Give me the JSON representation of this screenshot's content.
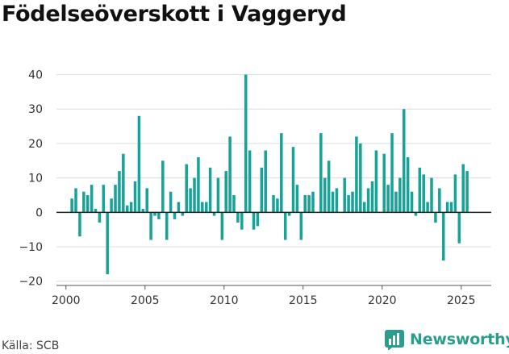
{
  "header": {
    "title": "Födelseöverskott i Vaggeryd"
  },
  "footer": {
    "source": "Källa: SCB",
    "brand": "Newsworthy"
  },
  "colors": {
    "bar": "#17a398",
    "grid": "#dddddd",
    "zero_line": "#222222",
    "brand": "#2a9d8f"
  },
  "chart_data": {
    "type": "bar",
    "title": "Födelseöverskott i Vaggeryd",
    "xlabel": "",
    "ylabel": "",
    "xlim": [
      1999.4,
      2026.9
    ],
    "ylim": [
      -21,
      42
    ],
    "x_ticks": [
      2000,
      2005,
      2010,
      2015,
      2020,
      2025
    ],
    "y_ticks": [
      -20,
      -10,
      0,
      10,
      20,
      30,
      40
    ],
    "grid": "horizontal",
    "bar_width": 0.18,
    "x": [
      2000.375,
      2000.625,
      2000.875,
      2001.125,
      2001.375,
      2001.625,
      2001.875,
      2002.125,
      2002.375,
      2002.625,
      2002.875,
      2003.125,
      2003.375,
      2003.625,
      2003.875,
      2004.125,
      2004.375,
      2004.625,
      2004.875,
      2005.125,
      2005.375,
      2005.625,
      2005.875,
      2006.125,
      2006.375,
      2006.625,
      2006.875,
      2007.125,
      2007.375,
      2007.625,
      2007.875,
      2008.125,
      2008.375,
      2008.625,
      2008.875,
      2009.125,
      2009.375,
      2009.625,
      2009.875,
      2010.125,
      2010.375,
      2010.625,
      2010.875,
      2011.125,
      2011.375,
      2011.625,
      2011.875,
      2012.125,
      2012.375,
      2012.625,
      2012.875,
      2013.125,
      2013.375,
      2013.625,
      2013.875,
      2014.125,
      2014.375,
      2014.625,
      2014.875,
      2015.125,
      2015.375,
      2015.625,
      2015.875,
      2016.125,
      2016.375,
      2016.625,
      2016.875,
      2017.125,
      2017.375,
      2017.625,
      2017.875,
      2018.125,
      2018.375,
      2018.625,
      2018.875,
      2019.125,
      2019.375,
      2019.625,
      2019.875,
      2020.125,
      2020.375,
      2020.625,
      2020.875,
      2021.125,
      2021.375,
      2021.625,
      2021.875,
      2022.125,
      2022.375,
      2022.625,
      2022.875,
      2023.125,
      2023.375,
      2023.625,
      2023.875,
      2024.125,
      2024.375,
      2024.625,
      2024.875,
      2025.125,
      2025.375
    ],
    "values": [
      4,
      7,
      -7,
      6,
      5,
      8,
      1,
      -3,
      8,
      -18,
      4,
      8,
      12,
      17,
      2,
      3,
      9,
      28,
      1,
      7,
      -8,
      -1,
      -2,
      15,
      -8,
      6,
      -2,
      3,
      -1,
      14,
      7,
      10,
      16,
      3,
      3,
      13,
      -1,
      10,
      -8,
      12,
      22,
      5,
      -3,
      -5,
      40,
      18,
      -5,
      -4,
      13,
      18,
      0,
      5,
      4,
      23,
      -8,
      -1,
      19,
      8,
      -8,
      5,
      5,
      6,
      0,
      23,
      10,
      15,
      6,
      7,
      0,
      10,
      5,
      6,
      22,
      20,
      3,
      7,
      9,
      18,
      0,
      17,
      8,
      23,
      6,
      10,
      30,
      16,
      6,
      -1,
      13,
      11,
      3,
      10,
      -3,
      7,
      -14,
      3,
      3,
      11,
      -9,
      14,
      12
    ]
  }
}
